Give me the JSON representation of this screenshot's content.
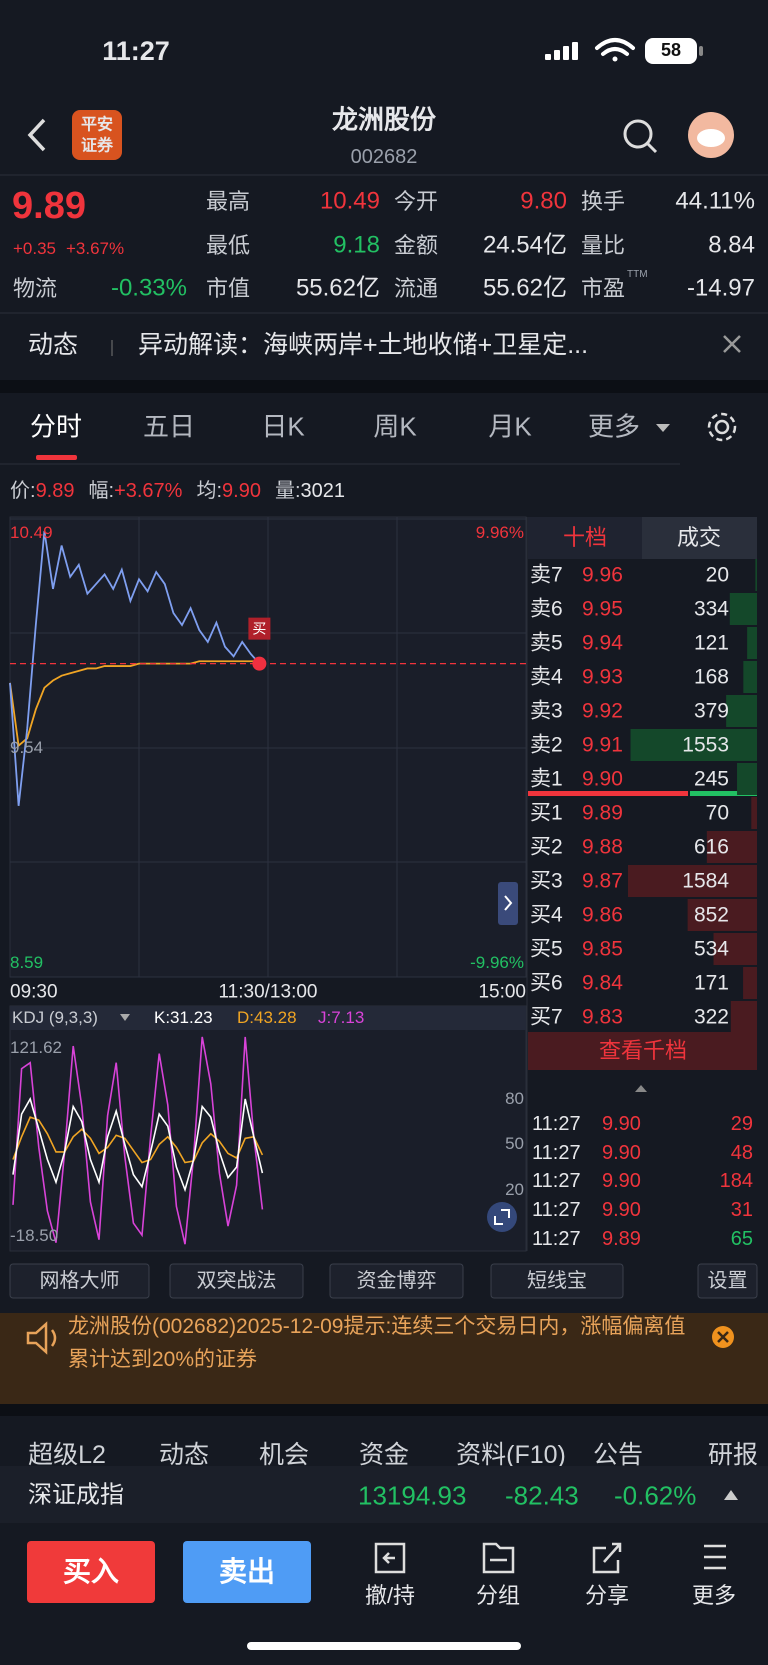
{
  "status": {
    "time": "11:27",
    "battery": "58"
  },
  "header": {
    "logo": [
      "平安",
      "证券"
    ],
    "title": "龙洲股份",
    "code": "002682"
  },
  "quote": {
    "price": "9.89",
    "change": "+0.35",
    "pct": "+3.67%",
    "stats": [
      {
        "label": "最高",
        "value": "10.49",
        "color": "#f0343c"
      },
      {
        "label": "今开",
        "value": "9.80",
        "color": "#f0343c"
      },
      {
        "label": "换手",
        "value": "44.11%",
        "color": "#e6e7ea"
      },
      {
        "label": "最低",
        "value": "9.18",
        "color": "#22c063"
      },
      {
        "label": "金额",
        "value": "24.54亿",
        "color": "#e6e7ea"
      },
      {
        "label": "量比",
        "value": "8.84",
        "color": "#e6e7ea"
      },
      {
        "label": "市值",
        "value": "55.62亿",
        "color": "#e6e7ea"
      },
      {
        "label": "流通",
        "value": "55.62亿",
        "color": "#e6e7ea"
      },
      {
        "label": "市盈",
        "sup": "TTM",
        "value": "-14.97",
        "color": "#e6e7ea"
      }
    ],
    "sector": {
      "label": "物流",
      "value": "-0.33%"
    }
  },
  "news": {
    "tag": "动态",
    "text": "异动解读：海峡两岸+土地收储+卫星定..."
  },
  "tabs": [
    "分时",
    "五日",
    "日K",
    "周K",
    "月K",
    "更多"
  ],
  "info": [
    {
      "label": "价:",
      "value": "9.89"
    },
    {
      "label": "幅:",
      "value": "+3.67%"
    },
    {
      "label": "均:",
      "value": "9.90"
    },
    {
      "label": "量:",
      "value": "3021"
    }
  ],
  "intraday": {
    "ylim": [
      8.59,
      10.49
    ],
    "yticks": [
      10.49,
      9.54,
      8.59
    ],
    "pct_labels": [
      "9.96%",
      "-9.96%"
    ],
    "xlabels": [
      "09:30",
      "11:30/13:00",
      "15:00"
    ],
    "marker": "买",
    "price": [
      9.81,
      9.3,
      9.62,
      10.05,
      10.44,
      10.2,
      10.38,
      10.25,
      10.3,
      10.18,
      10.22,
      10.26,
      10.2,
      10.28,
      10.15,
      10.24,
      10.19,
      10.27,
      10.22,
      10.1,
      10.05,
      10.12,
      10.03,
      9.98,
      10.06,
      9.96,
      9.92,
      9.98,
      9.93,
      9.89
    ],
    "avg": [
      9.81,
      9.55,
      9.58,
      9.7,
      9.79,
      9.82,
      9.84,
      9.85,
      9.86,
      9.87,
      9.87,
      9.88,
      9.88,
      9.88,
      9.88,
      9.89,
      9.89,
      9.89,
      9.89,
      9.89,
      9.89,
      9.89,
      9.9,
      9.9,
      9.9,
      9.9,
      9.9,
      9.9,
      9.9,
      9.9
    ],
    "price_color": "#7f9ff0",
    "avg_color": "#f0a524"
  },
  "kdj": {
    "label": "KDJ (9,3,3)",
    "ylim": [
      -18.5,
      121.62
    ],
    "yticks": [
      {
        "value": 121.62,
        "label": "121.62"
      },
      80,
      50,
      20,
      {
        "value": -18.5,
        "label": "-18.50"
      }
    ],
    "series": [
      {
        "name": "K:31.23",
        "color": "#ffffff",
        "values": [
          30,
          70,
          80,
          60,
          40,
          25,
          45,
          75,
          65,
          40,
          25,
          55,
          72,
          50,
          30,
          22,
          45,
          70,
          62,
          35,
          20,
          40,
          75,
          68,
          45,
          28,
          35,
          80,
          55,
          31
        ]
      },
      {
        "name": "D:43.28",
        "color": "#f0a524",
        "values": [
          40,
          55,
          68,
          66,
          57,
          45,
          45,
          55,
          60,
          54,
          44,
          48,
          56,
          54,
          46,
          38,
          40,
          50,
          55,
          48,
          38,
          39,
          51,
          57,
          52,
          44,
          41,
          54,
          55,
          43
        ]
      },
      {
        "name": "J:7.13",
        "color": "#d843d8",
        "values": [
          10,
          100,
          104,
          48,
          6,
          -15,
          45,
          115,
          75,
          12,
          -13,
          69,
          104,
          42,
          -2,
          -10,
          55,
          110,
          76,
          9,
          -16,
          42,
          121,
          90,
          31,
          -4,
          23,
          121,
          55,
          7
        ]
      }
    ]
  },
  "orderbook": {
    "tabs": [
      "十档",
      "成交"
    ],
    "asks": [
      {
        "label": "卖7",
        "price": "9.96",
        "volume": 20
      },
      {
        "label": "卖6",
        "price": "9.95",
        "volume": 334
      },
      {
        "label": "卖5",
        "price": "9.94",
        "volume": 121
      },
      {
        "label": "卖4",
        "price": "9.93",
        "volume": 168
      },
      {
        "label": "卖3",
        "price": "9.92",
        "volume": 379
      },
      {
        "label": "卖2",
        "price": "9.91",
        "volume": 1553
      },
      {
        "label": "卖1",
        "price": "9.90",
        "volume": 245
      }
    ],
    "bids": [
      {
        "label": "买1",
        "price": "9.89",
        "volume": 70
      },
      {
        "label": "买2",
        "price": "9.88",
        "volume": 616
      },
      {
        "label": "买3",
        "price": "9.87",
        "volume": 1584
      },
      {
        "label": "买4",
        "price": "9.86",
        "volume": 852
      },
      {
        "label": "买5",
        "price": "9.85",
        "volume": 534
      },
      {
        "label": "买6",
        "price": "9.84",
        "volume": 171
      },
      {
        "label": "买7",
        "price": "9.83",
        "volume": 322
      }
    ],
    "more": "查看千档"
  },
  "trades": [
    {
      "time": "11:27",
      "price": "9.90",
      "volume": 29,
      "color": "#f0343c"
    },
    {
      "time": "11:27",
      "price": "9.90",
      "volume": 48,
      "color": "#f0343c"
    },
    {
      "time": "11:27",
      "price": "9.90",
      "volume": 184,
      "color": "#f0343c"
    },
    {
      "time": "11:27",
      "price": "9.90",
      "volume": 31,
      "color": "#f0343c"
    },
    {
      "time": "11:27",
      "price": "9.89",
      "volume": 65,
      "color": "#22c063"
    }
  ],
  "tools": [
    "网格大师",
    "双突战法",
    "资金博弈",
    "短线宝",
    "设置"
  ],
  "alert": "龙洲股份(002682)2025-12-09提示:连续三个交易日内，涨幅偏离值累计达到20%的证券",
  "subtabs": [
    "超级L2",
    "动态",
    "机会",
    "资金",
    "资料(F10)",
    "公告",
    "研报"
  ],
  "index": {
    "name": "深证成指",
    "value": "13194.93",
    "change": "-82.43",
    "pct": "-0.62%"
  },
  "actions": {
    "buy": "买入",
    "sell": "卖出",
    "items": [
      "撤/持",
      "分组",
      "分享",
      "更多"
    ]
  }
}
